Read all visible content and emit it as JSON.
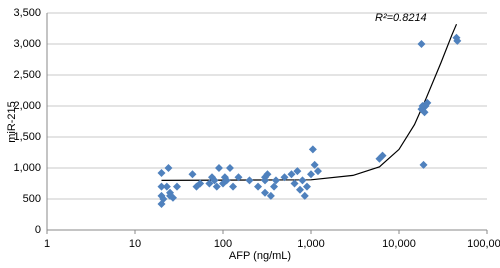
{
  "chart_data": {
    "type": "scatter",
    "x_label": "AFP (ng/mL)",
    "y_label": "miR-215",
    "annotation": "R²=0.8214",
    "color": "#4f81bd",
    "log_x": true,
    "grid": true,
    "xlim": [
      1,
      100000
    ],
    "xticks": [
      1,
      10,
      100,
      {
        "value": 1000,
        "label": "1,000"
      },
      {
        "value": 10000,
        "label": "10,000"
      },
      {
        "value": 100000,
        "label": "100,000"
      }
    ],
    "ylim": [
      0,
      3500
    ],
    "yticks": [
      0,
      500,
      {
        "value": 1000,
        "label": "1,000"
      },
      {
        "value": 1500,
        "label": "1,500"
      },
      {
        "value": 2000,
        "label": "2,000"
      },
      {
        "value": 2500,
        "label": "2,500"
      },
      {
        "value": 3000,
        "label": "3,000"
      },
      {
        "value": 3500,
        "label": "3,500"
      }
    ],
    "x": [
      20,
      20,
      20,
      20,
      21,
      23,
      24,
      25,
      25,
      27,
      30,
      45,
      50,
      55,
      70,
      75,
      80,
      85,
      90,
      100,
      105,
      110,
      120,
      130,
      150,
      200,
      250,
      300,
      300,
      300,
      320,
      350,
      380,
      400,
      500,
      600,
      650,
      700,
      750,
      800,
      850,
      900,
      1000,
      1050,
      1100,
      1200,
      6000,
      6500,
      18000,
      18000,
      18500,
      19000,
      20000,
      19500,
      21000,
      45000,
      46000
    ],
    "values": [
      920,
      700,
      550,
      420,
      500,
      700,
      1000,
      600,
      550,
      520,
      700,
      900,
      700,
      750,
      750,
      850,
      800,
      700,
      1000,
      750,
      850,
      800,
      1000,
      700,
      850,
      800,
      700,
      850,
      800,
      600,
      900,
      550,
      700,
      800,
      850,
      900,
      750,
      950,
      650,
      800,
      550,
      700,
      900,
      1300,
      1050,
      950,
      1150,
      1200,
      3000,
      1950,
      2000,
      1050,
      2000,
      1900,
      2050,
      3100,
      3050
    ],
    "trendline": {
      "color": "#000000",
      "x": [
        20,
        1000,
        3000,
        6000,
        10000,
        15000,
        20000,
        30000,
        40000,
        45000
      ],
      "values": [
        800,
        810,
        880,
        1020,
        1300,
        1700,
        2100,
        2700,
        3150,
        3320
      ]
    }
  }
}
